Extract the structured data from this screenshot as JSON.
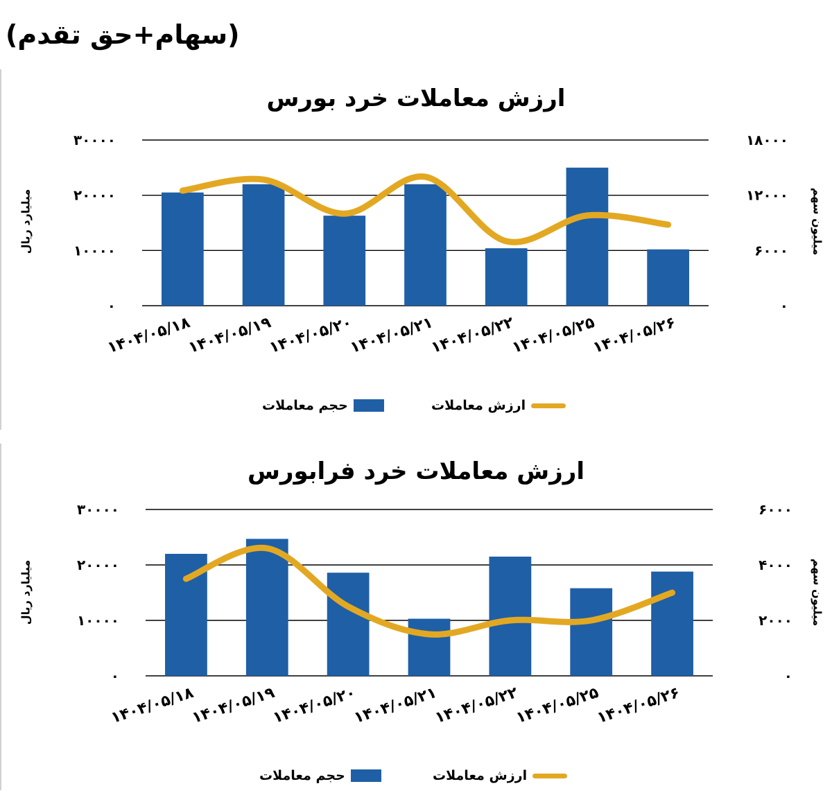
{
  "header_note": "(سهام+حق تقدم)",
  "colors": {
    "bar": "#1f5fa6",
    "line": "#e3a822",
    "grid": "#000000"
  },
  "chart_data": [
    {
      "type": "bar",
      "title": "ارزش معاملات خرد بورس",
      "categories": [
        "۱۴۰۴/۰۵/۱۸",
        "۱۴۰۴/۰۵/۱۹",
        "۱۴۰۴/۰۵/۲۰",
        "۱۴۰۴/۰۵/۲۱",
        "۱۴۰۴/۰۵/۲۲",
        "۱۴۰۴/۰۵/۲۵",
        "۱۴۰۴/۰۵/۲۶"
      ],
      "ylabel": "میلیارد ریال",
      "y2label": "میلیون سهم",
      "ylim": [
        0,
        30000
      ],
      "y2lim": [
        0,
        18000
      ],
      "yticks": [
        "۰",
        "۱۰۰۰۰",
        "۲۰۰۰۰",
        "۳۰۰۰۰"
      ],
      "y2ticks": [
        "۰",
        "۶۰۰۰",
        "۱۲۰۰۰",
        "۱۸۰۰۰"
      ],
      "series": [
        {
          "name": "حجم معاملات",
          "axis": "left",
          "values": [
            20500,
            22000,
            16300,
            22000,
            10400,
            25000,
            10200
          ]
        },
        {
          "name": "ارزش معاملات",
          "axis": "right",
          "values": [
            12500,
            13700,
            10000,
            14000,
            7000,
            9800,
            8800
          ]
        }
      ],
      "legend": "bottom"
    },
    {
      "type": "bar",
      "title": "ارزش معاملات خرد فرابورس",
      "categories": [
        "۱۴۰۴/۰۵/۱۸",
        "۱۴۰۴/۰۵/۱۹",
        "۱۴۰۴/۰۵/۲۰",
        "۱۴۰۴/۰۵/۲۱",
        "۱۴۰۴/۰۵/۲۲",
        "۱۴۰۴/۰۵/۲۵",
        "۱۴۰۴/۰۵/۲۶"
      ],
      "ylabel": "میلیارد ریال",
      "y2label": "میلیون سهم",
      "ylim": [
        0,
        30000
      ],
      "y2lim": [
        0,
        6000
      ],
      "yticks": [
        "۰",
        "۱۰۰۰۰",
        "۲۰۰۰۰",
        "۳۰۰۰۰"
      ],
      "y2ticks": [
        "۰",
        "۲۰۰۰",
        "۴۰۰۰",
        "۶۰۰۰"
      ],
      "series": [
        {
          "name": "حجم معاملات",
          "axis": "left",
          "values": [
            22000,
            24700,
            18600,
            10300,
            21500,
            15800,
            18800
          ]
        },
        {
          "name": "ارزش معاملات",
          "axis": "right",
          "values": [
            3500,
            4600,
            2500,
            1500,
            2000,
            2000,
            3000
          ]
        }
      ],
      "legend": "bottom"
    }
  ]
}
